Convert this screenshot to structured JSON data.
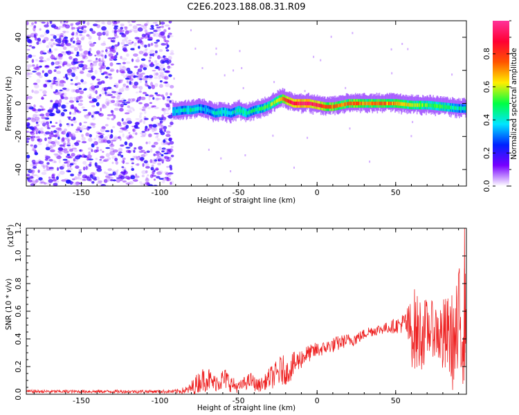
{
  "title": "C2E6.2023.188.08.31.R09",
  "chart_data": [
    {
      "type": "heatmap",
      "xlabel": "Height of straight line (km)",
      "ylabel": "Frequency (Hz)",
      "xlim": [
        -185,
        95
      ],
      "ylim": [
        -50,
        50
      ],
      "xticks": [
        -150,
        -100,
        -50,
        0,
        50
      ],
      "xtick_labels": [
        "-150",
        "-100",
        "-50",
        "0",
        "50"
      ],
      "yticks": [
        -40,
        -20,
        0,
        20,
        40
      ],
      "ytick_labels": [
        "-40",
        "-20",
        "0",
        "20",
        "40"
      ],
      "colorbar": {
        "label": "Normalized spectral amplitude",
        "range": [
          0,
          1
        ],
        "ticks": [
          0.0,
          0.2,
          0.4,
          0.6,
          0.8
        ],
        "tick_labels": [
          "0.0",
          "0.2",
          "0.4",
          "0.6",
          "0.8"
        ],
        "colors": [
          "#ffffff",
          "#7700ff",
          "#0022ff",
          "#00e5ff",
          "#00ff44",
          "#ffee00",
          "#ff5500",
          "#ff0033",
          "#ff3399"
        ]
      },
      "noise_region_x": [
        -185,
        -92
      ],
      "ridge": {
        "x": [
          -92,
          -85,
          -80,
          -75,
          -70,
          -65,
          -60,
          -55,
          -50,
          -45,
          -40,
          -35,
          -30,
          -25,
          -22,
          -20,
          -15,
          -10,
          -5,
          0,
          5,
          10,
          15,
          20,
          25,
          30,
          40,
          50,
          60,
          70,
          80,
          90,
          95
        ],
        "y": [
          -5,
          -4,
          -4,
          -3,
          -4,
          -6,
          -5,
          -6,
          -4,
          -6,
          -4,
          -3,
          -1,
          2,
          3,
          2,
          0,
          0,
          0,
          -1,
          -2,
          -2,
          -1,
          0,
          0,
          0,
          0,
          0,
          -1,
          -1,
          -2,
          -3,
          -3
        ],
        "amplitude": [
          0.35,
          0.4,
          0.45,
          0.4,
          0.35,
          0.4,
          0.45,
          0.4,
          0.45,
          0.45,
          0.45,
          0.5,
          0.55,
          0.6,
          0.75,
          0.85,
          0.9,
          0.95,
          0.95,
          0.9,
          0.8,
          0.75,
          0.7,
          0.75,
          0.75,
          0.7,
          0.75,
          0.7,
          0.6,
          0.55,
          0.5,
          0.45,
          0.4
        ]
      }
    },
    {
      "type": "line",
      "xlabel": "Height of straight line (km)",
      "ylabel": "SNR (10 * v/v)",
      "scale_label": "(x10",
      "scale_exp": "4",
      "scale_close": ")",
      "xlim": [
        -185,
        95
      ],
      "ylim": [
        0,
        1.2
      ],
      "xticks": [
        -150,
        -100,
        -50,
        0,
        50
      ],
      "xtick_labels": [
        "-150",
        "-100",
        "-50",
        "0",
        "50"
      ],
      "yticks": [
        0.0,
        0.2,
        0.4,
        0.6,
        0.8,
        1.0,
        1.2
      ],
      "ytick_labels": [
        "0.0",
        "0.2",
        "0.4",
        "0.6",
        "0.8",
        "1.0",
        "1.2"
      ],
      "series": [
        {
          "color": "#ee2222",
          "envelope_x": [
            -185,
            -150,
            -100,
            -90,
            -82,
            -78,
            -74,
            -70,
            -66,
            -62,
            -58,
            -54,
            -50,
            -46,
            -42,
            -38,
            -34,
            -30,
            -26,
            -22,
            -20,
            -16,
            -12,
            -8,
            -4,
            0,
            4,
            8,
            12,
            16,
            20,
            24,
            28,
            32,
            36,
            40,
            44,
            48,
            52,
            56,
            60,
            62,
            64,
            68,
            72,
            76,
            80,
            84,
            88,
            90,
            92,
            95
          ],
          "envelope_mid": [
            0.02,
            0.02,
            0.02,
            0.02,
            0.03,
            0.06,
            0.1,
            0.12,
            0.08,
            0.1,
            0.11,
            0.07,
            0.05,
            0.08,
            0.1,
            0.06,
            0.08,
            0.12,
            0.14,
            0.18,
            0.15,
            0.2,
            0.24,
            0.28,
            0.3,
            0.32,
            0.33,
            0.35,
            0.36,
            0.38,
            0.39,
            0.4,
            0.42,
            0.45,
            0.46,
            0.47,
            0.48,
            0.49,
            0.5,
            0.52,
            0.45,
            0.47,
            0.43,
            0.45,
            0.48,
            0.46,
            0.4,
            0.42,
            0.35,
            0.45,
            0.55,
            0.55
          ],
          "envelope_amp": [
            0.012,
            0.012,
            0.012,
            0.015,
            0.03,
            0.07,
            0.08,
            0.1,
            0.06,
            0.08,
            0.08,
            0.06,
            0.04,
            0.05,
            0.06,
            0.05,
            0.05,
            0.08,
            0.1,
            0.12,
            0.08,
            0.1,
            0.08,
            0.07,
            0.06,
            0.06,
            0.05,
            0.05,
            0.06,
            0.05,
            0.05,
            0.05,
            0.04,
            0.04,
            0.04,
            0.04,
            0.04,
            0.05,
            0.06,
            0.08,
            0.25,
            0.3,
            0.3,
            0.25,
            0.2,
            0.2,
            0.3,
            0.3,
            0.4,
            0.45,
            0.55,
            0.3
          ]
        }
      ]
    }
  ]
}
